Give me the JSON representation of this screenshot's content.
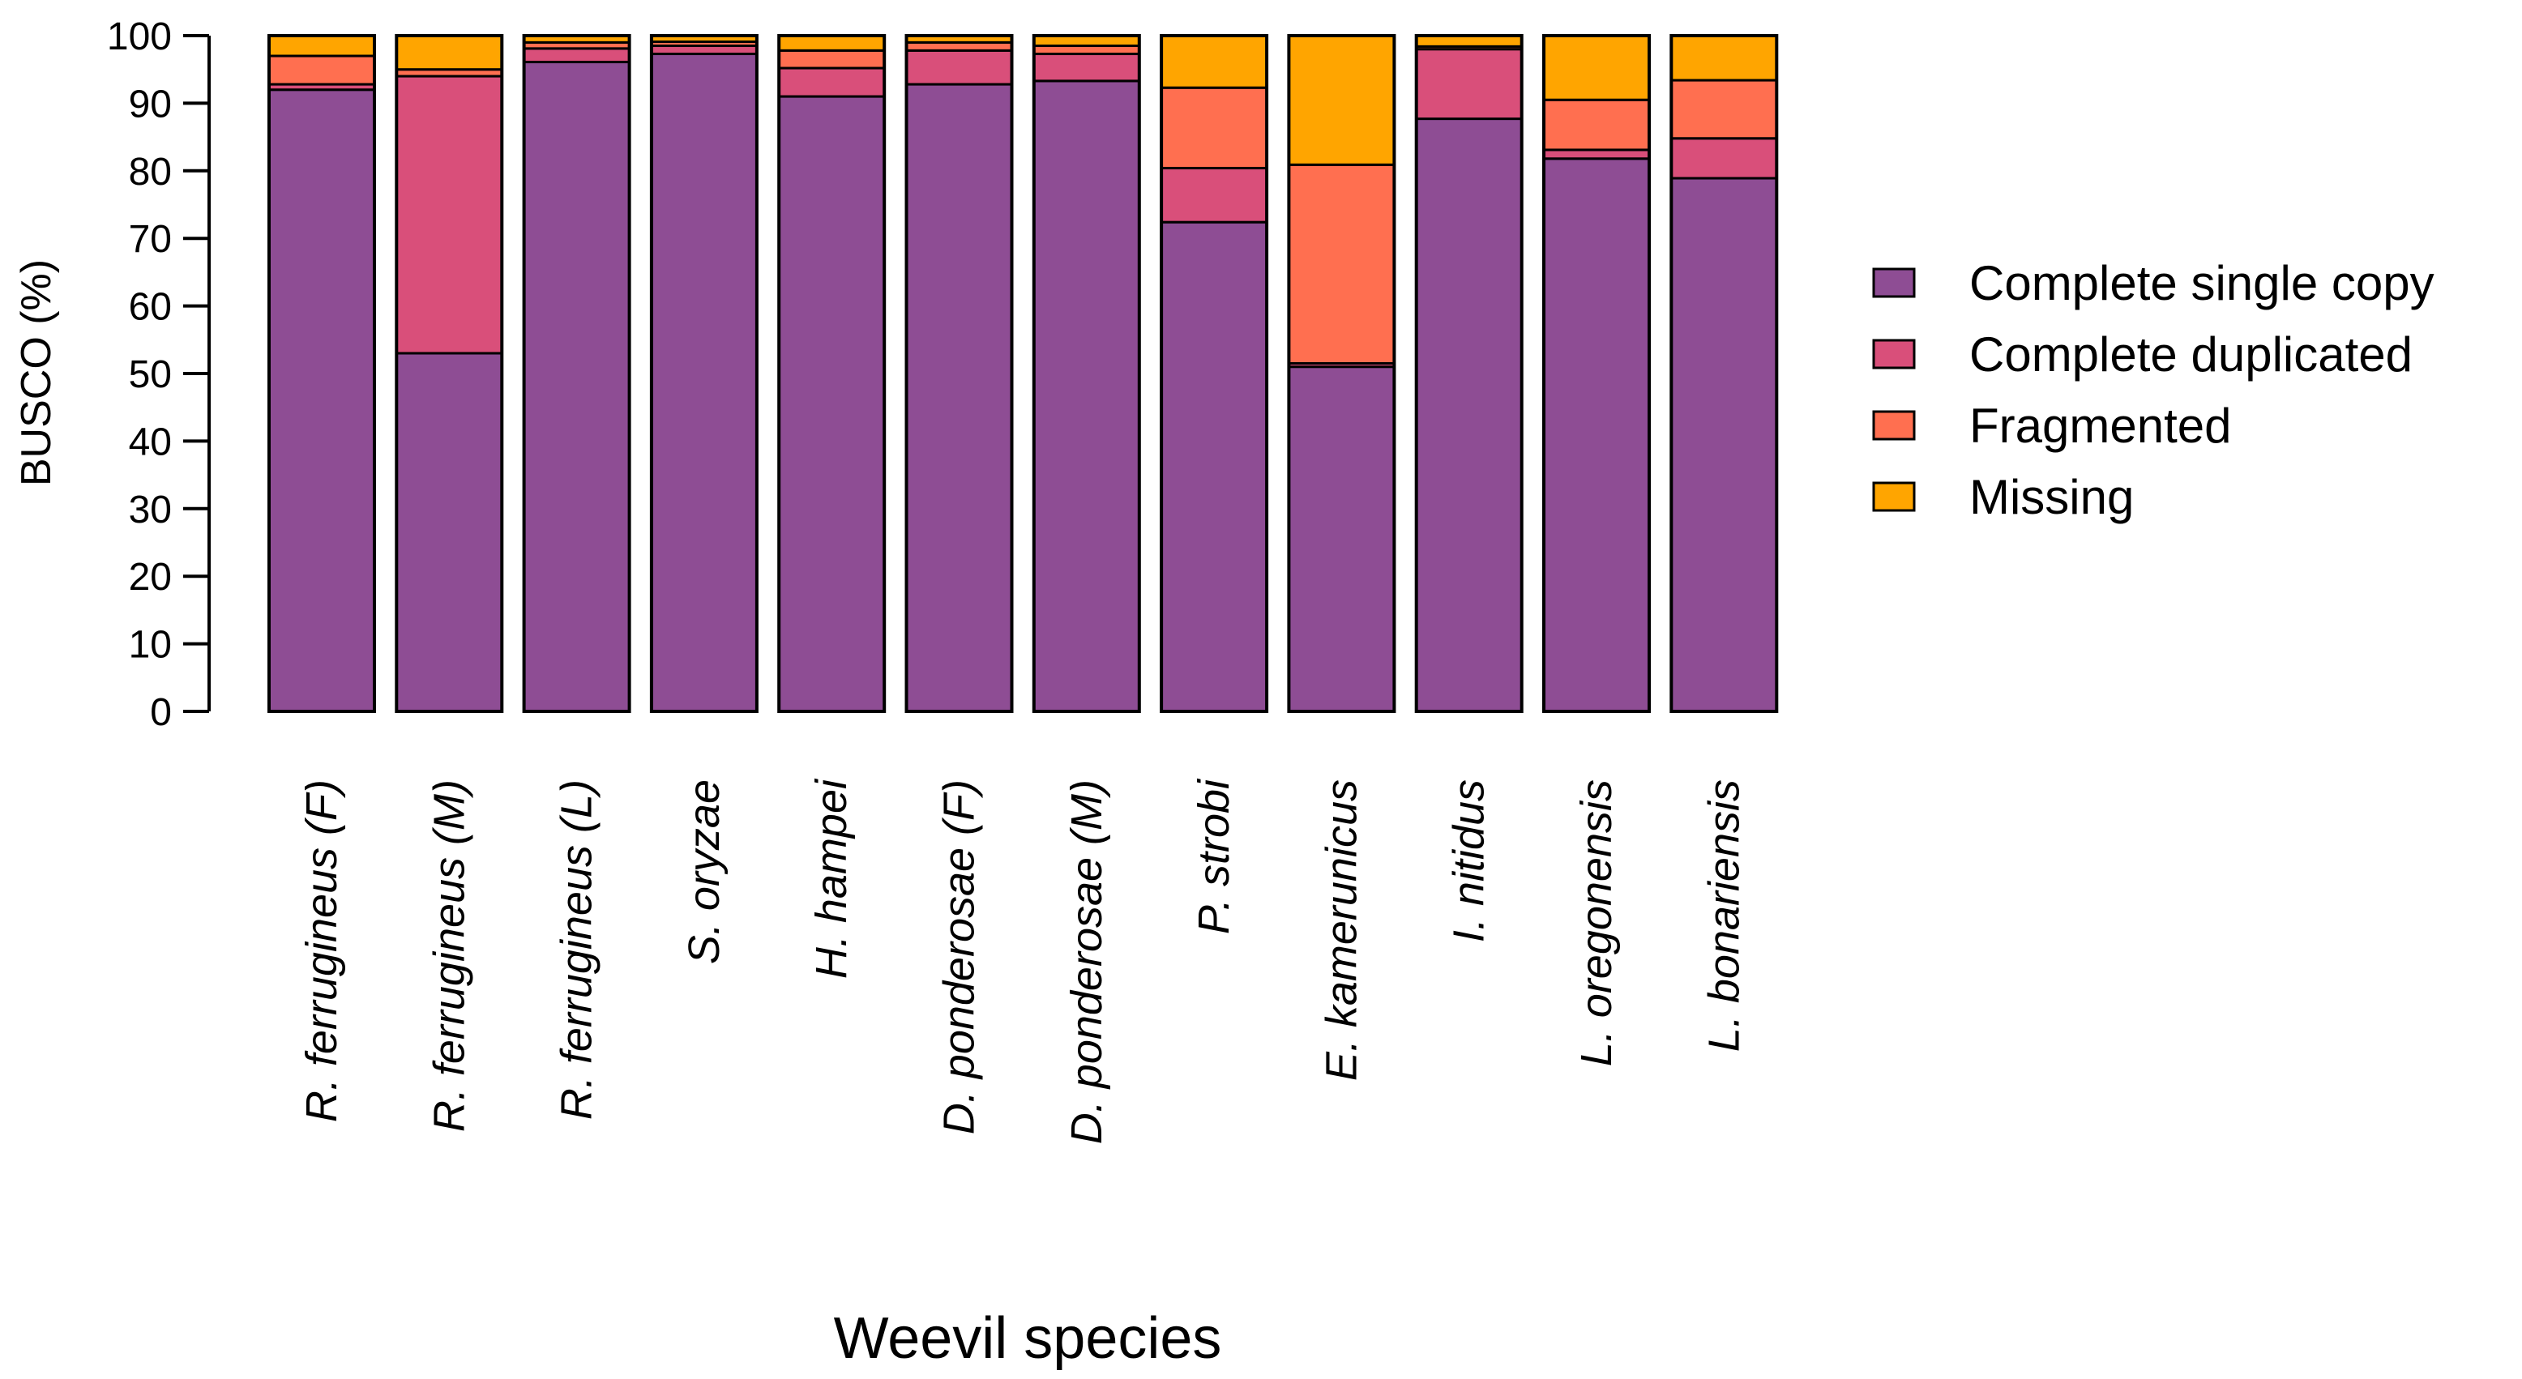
{
  "chart_data": {
    "type": "bar",
    "stacked": true,
    "title": "",
    "xlabel": "Weevil species",
    "ylabel": "BUSCO (%)",
    "ylim": [
      0,
      100
    ],
    "yticks": [
      0,
      10,
      20,
      30,
      40,
      50,
      60,
      70,
      80,
      90,
      100
    ],
    "grid": false,
    "legend_position": "right",
    "categories": [
      "R. ferrugineus (F)",
      "R. ferrugineus (M)",
      "R. ferrugineus (L)",
      "S. oryzae",
      "H. hampei",
      "D. ponderosae (F)",
      "D. ponderosae (M)",
      "P. strobi",
      "E. kamerunicus",
      "I. nitidus",
      "L. oregonensis",
      "L. bonariensis"
    ],
    "series": [
      {
        "name": "Complete single copy",
        "color": "#8E4D94",
        "values": [
          92.0,
          53.0,
          96.1,
          97.3,
          91.0,
          92.8,
          93.3,
          72.4,
          51.0,
          87.7,
          81.8,
          78.9
        ]
      },
      {
        "name": "Complete duplicated",
        "color": "#D94F7A",
        "values": [
          0.8,
          41.0,
          2.0,
          1.2,
          4.2,
          5.0,
          4.0,
          8.0,
          0.5,
          10.3,
          1.3,
          5.9
        ]
      },
      {
        "name": "Fragmented",
        "color": "#FF6F50",
        "values": [
          4.2,
          1.0,
          0.9,
          0.6,
          2.6,
          1.2,
          1.2,
          11.9,
          29.4,
          0.4,
          7.4,
          8.6
        ]
      },
      {
        "name": "Missing",
        "color": "#FFA500",
        "values": [
          3.0,
          5.0,
          1.0,
          0.9,
          2.2,
          1.0,
          1.5,
          7.7,
          19.1,
          1.6,
          9.5,
          6.6
        ]
      }
    ]
  }
}
